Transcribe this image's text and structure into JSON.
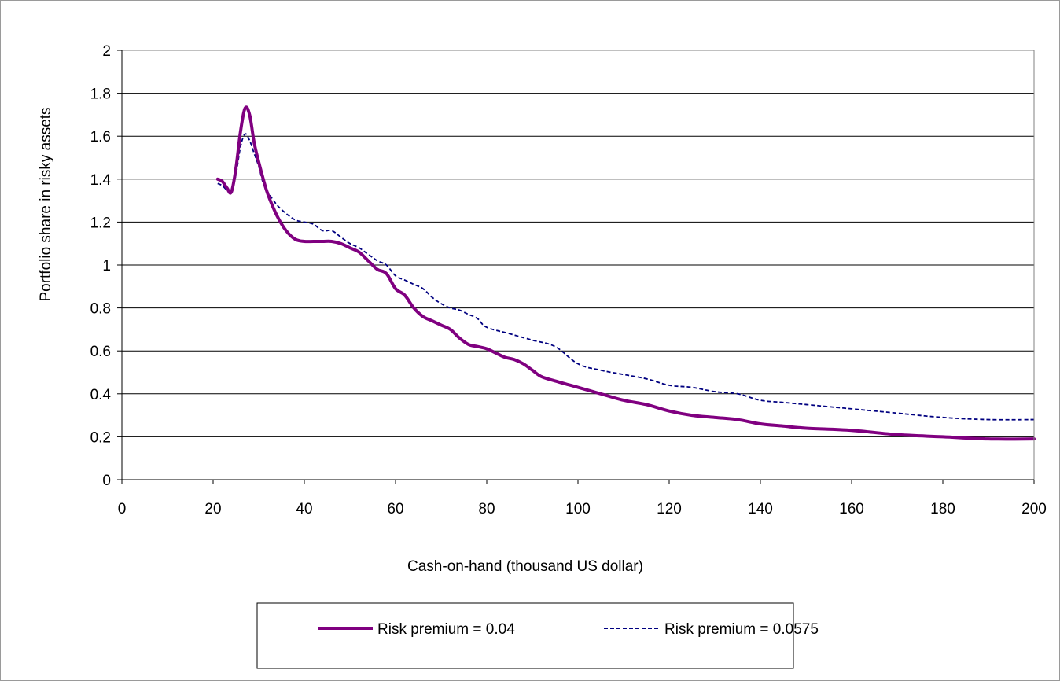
{
  "chart_data": {
    "type": "line",
    "title": "",
    "xlabel": "Cash-on-hand (thousand US dollar)",
    "ylabel": "Portfolio share in risky assets",
    "xlim": [
      0,
      200
    ],
    "ylim": [
      0,
      2
    ],
    "x_ticks": [
      "0",
      "20",
      "40",
      "60",
      "80",
      "100",
      "120",
      "140",
      "160",
      "180",
      "200"
    ],
    "y_ticks": [
      "0",
      "0.2",
      "0.4",
      "0.6",
      "0.8",
      "1",
      "1.2",
      "1.4",
      "1.6",
      "1.8",
      "2"
    ],
    "grid": "horizontal",
    "legend_position": "bottom",
    "series": [
      {
        "name": "Risk premium = 0.04",
        "color": "#800080",
        "style": "solid",
        "points": [
          [
            21,
            1.4
          ],
          [
            22,
            1.39
          ],
          [
            23,
            1.36
          ],
          [
            24,
            1.34
          ],
          [
            25,
            1.45
          ],
          [
            26,
            1.62
          ],
          [
            27,
            1.73
          ],
          [
            28,
            1.7
          ],
          [
            29,
            1.57
          ],
          [
            30,
            1.48
          ],
          [
            31,
            1.4
          ],
          [
            32,
            1.33
          ],
          [
            34,
            1.23
          ],
          [
            36,
            1.16
          ],
          [
            38,
            1.12
          ],
          [
            40,
            1.11
          ],
          [
            42,
            1.11
          ],
          [
            44,
            1.11
          ],
          [
            46,
            1.11
          ],
          [
            48,
            1.1
          ],
          [
            50,
            1.08
          ],
          [
            52,
            1.06
          ],
          [
            54,
            1.02
          ],
          [
            56,
            0.98
          ],
          [
            58,
            0.96
          ],
          [
            60,
            0.89
          ],
          [
            62,
            0.86
          ],
          [
            64,
            0.8
          ],
          [
            66,
            0.76
          ],
          [
            68,
            0.74
          ],
          [
            70,
            0.72
          ],
          [
            72,
            0.7
          ],
          [
            74,
            0.66
          ],
          [
            76,
            0.63
          ],
          [
            78,
            0.62
          ],
          [
            80,
            0.61
          ],
          [
            82,
            0.59
          ],
          [
            84,
            0.57
          ],
          [
            86,
            0.56
          ],
          [
            88,
            0.54
          ],
          [
            90,
            0.51
          ],
          [
            92,
            0.48
          ],
          [
            95,
            0.46
          ],
          [
            100,
            0.43
          ],
          [
            105,
            0.4
          ],
          [
            110,
            0.37
          ],
          [
            115,
            0.35
          ],
          [
            120,
            0.32
          ],
          [
            125,
            0.3
          ],
          [
            130,
            0.29
          ],
          [
            135,
            0.28
          ],
          [
            140,
            0.26
          ],
          [
            145,
            0.25
          ],
          [
            150,
            0.24
          ],
          [
            160,
            0.23
          ],
          [
            170,
            0.21
          ],
          [
            180,
            0.2
          ],
          [
            190,
            0.19
          ],
          [
            200,
            0.19
          ]
        ]
      },
      {
        "name": "Risk premium = 0.0575",
        "color": "#000080",
        "style": "dashed",
        "points": [
          [
            21,
            1.38
          ],
          [
            22,
            1.37
          ],
          [
            23,
            1.35
          ],
          [
            24,
            1.34
          ],
          [
            25,
            1.42
          ],
          [
            26,
            1.55
          ],
          [
            27,
            1.61
          ],
          [
            28,
            1.58
          ],
          [
            29,
            1.52
          ],
          [
            30,
            1.46
          ],
          [
            31,
            1.38
          ],
          [
            32,
            1.34
          ],
          [
            34,
            1.28
          ],
          [
            36,
            1.24
          ],
          [
            38,
            1.21
          ],
          [
            40,
            1.2
          ],
          [
            42,
            1.19
          ],
          [
            44,
            1.16
          ],
          [
            46,
            1.16
          ],
          [
            48,
            1.13
          ],
          [
            50,
            1.1
          ],
          [
            52,
            1.08
          ],
          [
            54,
            1.05
          ],
          [
            56,
            1.02
          ],
          [
            58,
            1.0
          ],
          [
            60,
            0.95
          ],
          [
            62,
            0.93
          ],
          [
            64,
            0.91
          ],
          [
            66,
            0.89
          ],
          [
            68,
            0.85
          ],
          [
            70,
            0.82
          ],
          [
            72,
            0.8
          ],
          [
            74,
            0.79
          ],
          [
            76,
            0.77
          ],
          [
            78,
            0.75
          ],
          [
            80,
            0.71
          ],
          [
            85,
            0.68
          ],
          [
            90,
            0.65
          ],
          [
            95,
            0.62
          ],
          [
            100,
            0.54
          ],
          [
            105,
            0.51
          ],
          [
            110,
            0.49
          ],
          [
            115,
            0.47
          ],
          [
            120,
            0.44
          ],
          [
            125,
            0.43
          ],
          [
            130,
            0.41
          ],
          [
            135,
            0.4
          ],
          [
            140,
            0.37
          ],
          [
            145,
            0.36
          ],
          [
            150,
            0.35
          ],
          [
            160,
            0.33
          ],
          [
            170,
            0.31
          ],
          [
            180,
            0.29
          ],
          [
            190,
            0.28
          ],
          [
            200,
            0.28
          ]
        ]
      }
    ]
  }
}
